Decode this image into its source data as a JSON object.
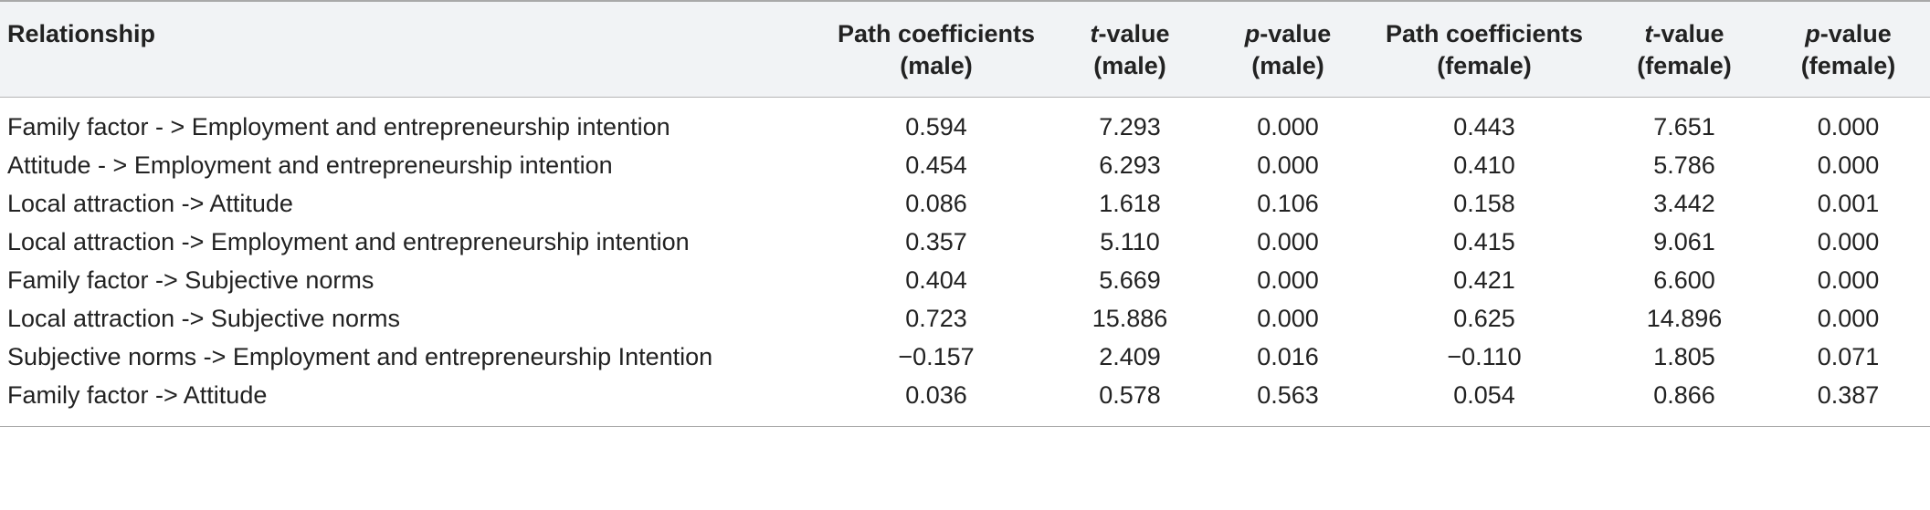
{
  "table": {
    "headers": [
      {
        "line1_italic": "",
        "line1": "Relationship",
        "line2": ""
      },
      {
        "line1_italic": "",
        "line1": "Path coefficients",
        "line2": "(male)"
      },
      {
        "line1_italic": "t",
        "line1": "-value",
        "line2": "(male)"
      },
      {
        "line1_italic": "p",
        "line1": "-value",
        "line2": "(male)"
      },
      {
        "line1_italic": "",
        "line1": "Path coefficients",
        "line2": "(female)"
      },
      {
        "line1_italic": "t",
        "line1": "-value",
        "line2": "(female)"
      },
      {
        "line1_italic": "p",
        "line1": "-value",
        "line2": "(female)"
      }
    ],
    "rows": [
      {
        "relationship": "Family factor - > Employment and entrepreneurship intention",
        "path_male": "0.594",
        "t_male": "7.293",
        "p_male": "0.000",
        "path_female": "0.443",
        "t_female": "7.651",
        "p_female": "0.000"
      },
      {
        "relationship": "Attitude - > Employment and entrepreneurship intention",
        "path_male": "0.454",
        "t_male": "6.293",
        "p_male": "0.000",
        "path_female": "0.410",
        "t_female": "5.786",
        "p_female": "0.000"
      },
      {
        "relationship": "Local attraction -> Attitude",
        "path_male": "0.086",
        "t_male": "1.618",
        "p_male": "0.106",
        "path_female": "0.158",
        "t_female": "3.442",
        "p_female": "0.001"
      },
      {
        "relationship": "Local attraction -> Employment and entrepreneurship intention",
        "path_male": "0.357",
        "t_male": "5.110",
        "p_male": "0.000",
        "path_female": "0.415",
        "t_female": "9.061",
        "p_female": "0.000"
      },
      {
        "relationship": "Family factor -> Subjective norms",
        "path_male": "0.404",
        "t_male": "5.669",
        "p_male": "0.000",
        "path_female": "0.421",
        "t_female": "6.600",
        "p_female": "0.000"
      },
      {
        "relationship": "Local attraction -> Subjective norms",
        "path_male": "0.723",
        "t_male": "15.886",
        "p_male": "0.000",
        "path_female": "0.625",
        "t_female": "14.896",
        "p_female": "0.000"
      },
      {
        "relationship": "Subjective norms -> Employment and entrepreneurship Intention",
        "path_male": "−0.157",
        "t_male": "2.409",
        "p_male": "0.016",
        "path_female": "−0.110",
        "t_female": "1.805",
        "p_female": "0.071"
      },
      {
        "relationship": "Family factor -> Attitude",
        "path_male": "0.036",
        "t_male": "0.578",
        "p_male": "0.563",
        "path_female": "0.054",
        "t_female": "0.866",
        "p_female": "0.387"
      }
    ]
  }
}
